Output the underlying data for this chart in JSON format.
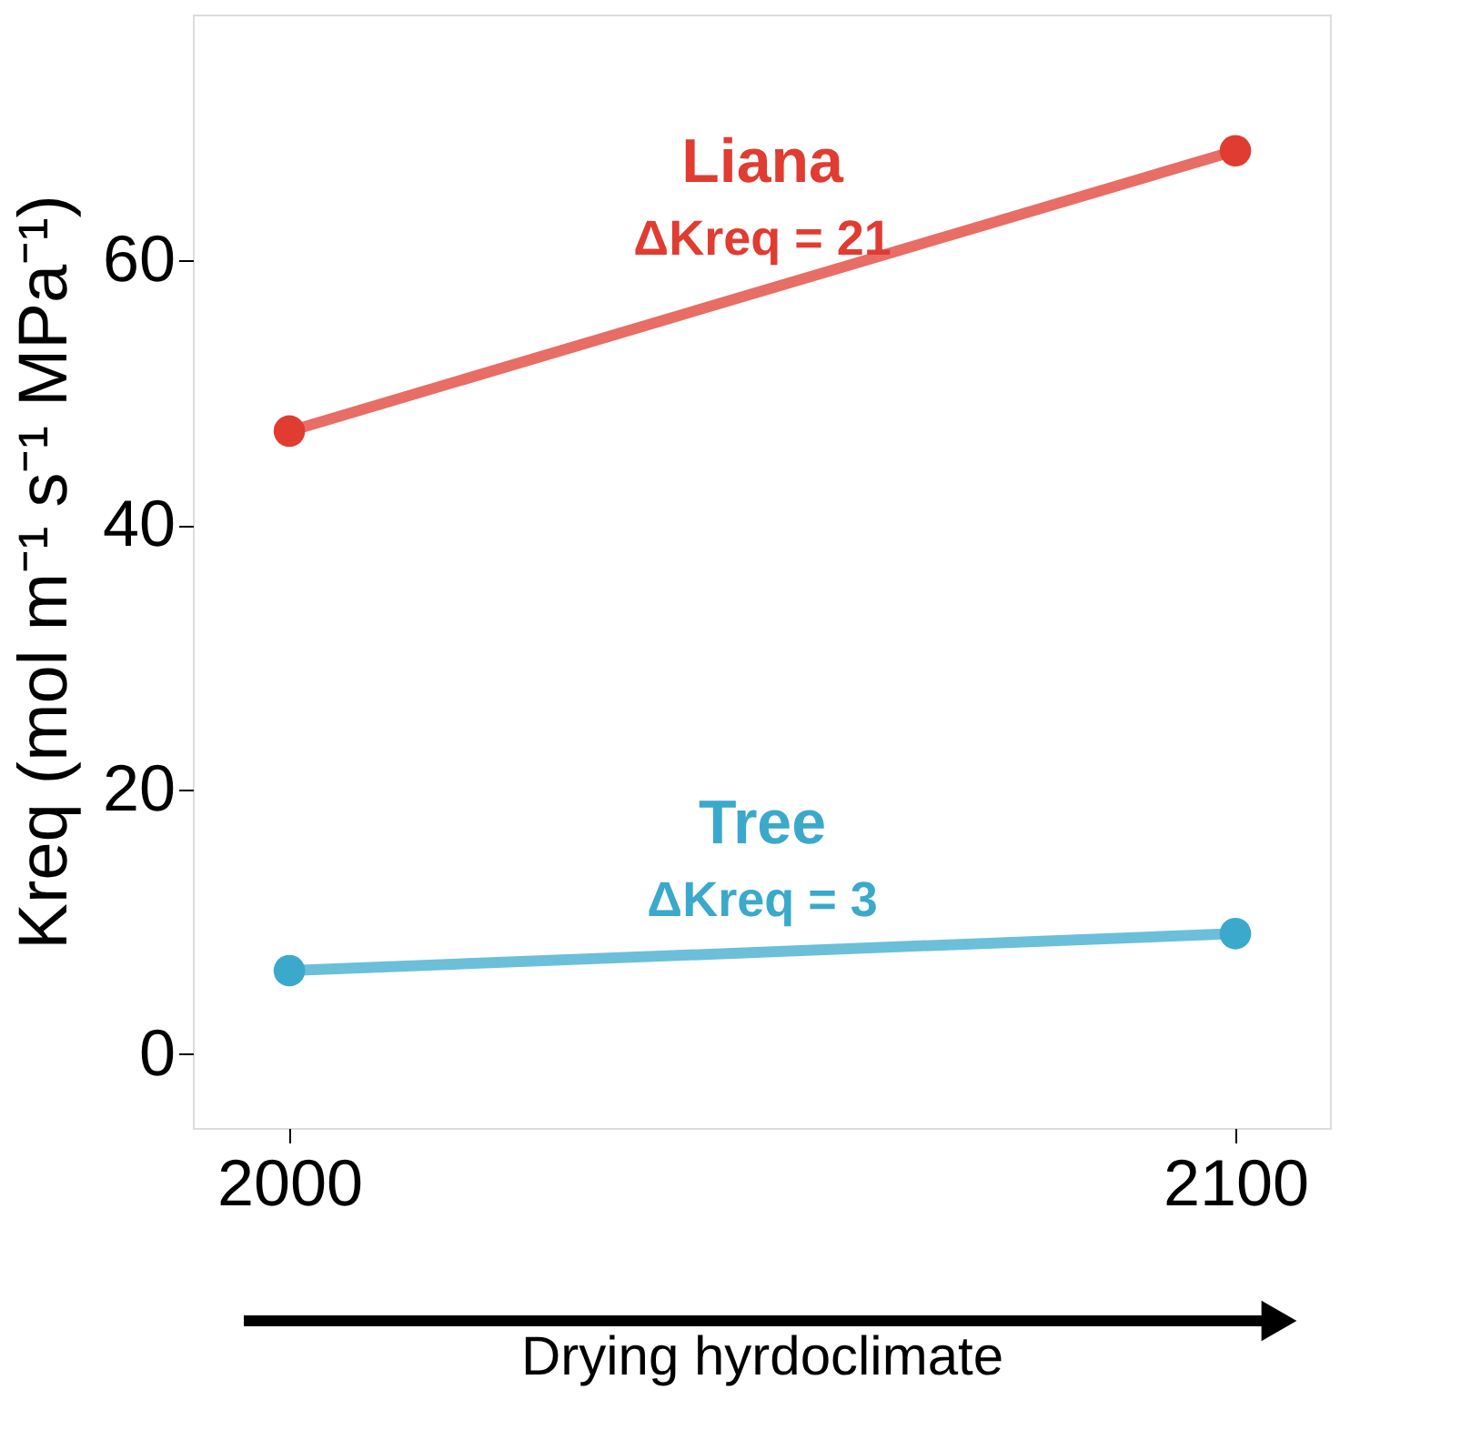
{
  "chart_data": {
    "type": "line",
    "x": [
      2000,
      2100
    ],
    "series": [
      {
        "name": "Liana",
        "color": "#e03c31",
        "values": [
          47.1,
          68.3
        ]
      },
      {
        "name": "Tree",
        "color": "#3aa9cc",
        "values": [
          6.3,
          9.1
        ]
      }
    ],
    "xlabel": "Drying hyrdoclimate",
    "ylabel": "Kreq (mol m⁻¹ s⁻¹ MPa⁻¹)",
    "xlim": [
      1989.8,
      2110
    ],
    "xticks": [
      2000,
      2100
    ],
    "ylim": [
      -5.6,
      78.6
    ],
    "yticks": [
      0,
      20,
      40,
      60
    ],
    "annotations": [
      "ΔKreq = 21",
      "ΔKreq = 3"
    ],
    "grid": false,
    "legend": false,
    "marker": "circle",
    "line_style": "solid"
  }
}
